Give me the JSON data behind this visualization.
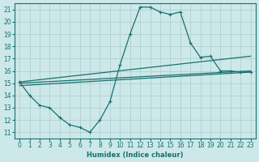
{
  "xlabel": "Humidex (Indice chaleur)",
  "bg_color": "#cce8e8",
  "grid_color": "#aacccc",
  "line_color": "#1a7070",
  "xlim": [
    -0.5,
    23.5
  ],
  "ylim": [
    10.5,
    21.5
  ],
  "xticks": [
    0,
    1,
    2,
    3,
    4,
    5,
    6,
    7,
    8,
    9,
    10,
    11,
    12,
    13,
    14,
    15,
    16,
    17,
    18,
    19,
    20,
    21,
    22,
    23
  ],
  "yticks": [
    11,
    12,
    13,
    14,
    15,
    16,
    17,
    18,
    19,
    20,
    21
  ],
  "line1_x": [
    0,
    1,
    2,
    3,
    4,
    5,
    6,
    7,
    8,
    9,
    10,
    11,
    12,
    13,
    14,
    15,
    16,
    17,
    18,
    19,
    20,
    21,
    22,
    23
  ],
  "line1_y": [
    15.1,
    14.0,
    13.2,
    13.0,
    12.2,
    11.6,
    11.4,
    11.0,
    12.0,
    13.5,
    16.5,
    19.0,
    21.2,
    21.2,
    20.8,
    20.6,
    20.8,
    18.3,
    17.1,
    17.2,
    16.0,
    16.0,
    15.9,
    15.9
  ],
  "line2_x": [
    0,
    23
  ],
  "line2_y": [
    15.0,
    16.0
  ],
  "line3_x": [
    0,
    23
  ],
  "line3_y": [
    15.1,
    17.2
  ],
  "line4_x": [
    0,
    23
  ],
  "line4_y": [
    14.8,
    15.9
  ]
}
